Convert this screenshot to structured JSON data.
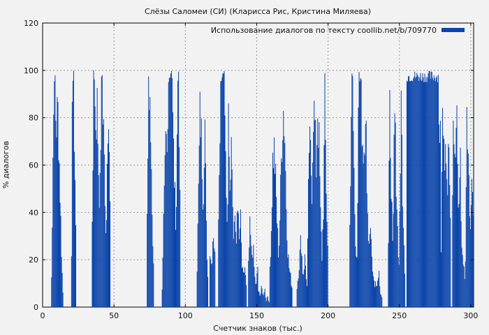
{
  "chart_data": {
    "type": "bar",
    "title": "Слёзы Саломеи (СИ) (Кларисса Рис, Кристина Миляева)",
    "xlabel": "Счетчик знаков (тыс.)",
    "ylabel": "% диалогов",
    "xlim": [
      0,
      302
    ],
    "ylim": [
      0,
      120
    ],
    "xticks": [
      0,
      50,
      100,
      150,
      200,
      250,
      300
    ],
    "yticks": [
      0,
      20,
      40,
      60,
      80,
      100,
      120
    ],
    "grid": true,
    "legend_position": "top-right",
    "series": [
      {
        "name": "Использование диалогов по тексту coollib.net/b/709770",
        "color": "#0a44aa",
        "bin_width": 0.5,
        "segments": [
          {
            "start": 5.5,
            "end": 15,
            "profile": [
              0,
              20,
              78,
              100,
              100,
              96,
              90,
              100,
              85,
              65,
              45,
              25,
              10,
              0
            ]
          },
          {
            "start": 20,
            "end": 23.5,
            "profile": [
              30,
              100,
              100,
              95,
              70,
              40
            ]
          },
          {
            "start": 34.5,
            "end": 47.5,
            "profile": [
              40,
              100,
              100,
              92,
              100,
              70,
              50,
              100,
              100,
              85,
              60,
              30,
              100,
              90,
              50
            ]
          },
          {
            "start": 73,
            "end": 78,
            "profile": [
              40,
              98,
              100,
              90,
              70,
              40,
              20
            ]
          },
          {
            "start": 83.5,
            "end": 96.5,
            "profile": [
              10,
              40,
              60,
              80,
              70,
              100,
              100,
              100,
              100,
              85,
              55,
              30,
              100,
              100,
              70
            ]
          },
          {
            "start": 108,
            "end": 116,
            "profile": [
              20,
              60,
              100,
              80,
              50,
              100,
              40,
              15
            ]
          },
          {
            "start": 117,
            "end": 121,
            "profile": [
              30,
              20,
              40,
              25
            ]
          },
          {
            "start": 123,
            "end": 143,
            "profile": [
              50,
              100,
              100,
              100,
              100,
              70,
              40,
              100,
              60,
              100,
              30,
              50,
              25,
              60,
              30,
              45,
              20,
              15,
              20,
              10
            ]
          },
          {
            "start": 144,
            "end": 151,
            "profile": [
              20,
              40,
              25,
              30,
              15,
              10,
              20
            ]
          },
          {
            "start": 151,
            "end": 159,
            "profile": [
              8,
              5,
              12,
              4,
              10,
              3,
              6,
              2
            ]
          },
          {
            "start": 159,
            "end": 175,
            "profile": [
              20,
              40,
              75,
              78,
              60,
              40,
              25,
              50,
              80,
              100,
              90,
              55,
              30,
              20,
              15,
              10
            ]
          },
          {
            "start": 178,
            "end": 185.5,
            "profile": [
              10,
              20,
              35,
              15,
              25,
              10
            ]
          },
          {
            "start": 185.5,
            "end": 200,
            "profile": [
              30,
              80,
              75,
              60,
              100,
              90,
              70,
              100,
              80,
              45,
              25,
              50,
              100,
              60,
              30
            ]
          },
          {
            "start": 215,
            "end": 233,
            "profile": [
              40,
              100,
              95,
              70,
              30,
              20,
              100,
              100,
              100,
              80,
              60,
              100,
              50,
              30,
              45,
              25,
              15,
              10
            ]
          },
          {
            "start": 233,
            "end": 238,
            "profile": [
              15,
              10,
              20,
              8,
              5
            ]
          },
          {
            "start": 242,
            "end": 250,
            "profile": [
              30,
              100,
              60,
              20,
              100,
              70,
              40,
              20
            ]
          },
          {
            "start": 250,
            "end": 254,
            "profile": [
              50,
              100,
              40,
              20
            ]
          },
          {
            "start": 255,
            "end": 279,
            "profile": [
              100,
              100,
              98,
              100,
              100,
              95,
              100,
              100,
              98,
              100,
              100,
              100,
              100,
              97,
              100,
              100,
              100,
              99,
              100,
              100,
              100,
              95,
              100,
              80
            ]
          },
          {
            "start": 279,
            "end": 286,
            "profile": [
              30,
              100,
              70,
              100,
              40,
              100,
              50
            ]
          },
          {
            "start": 287,
            "end": 296,
            "profile": [
              60,
              100,
              80,
              100,
              40,
              90,
              30,
              20,
              15
            ]
          },
          {
            "start": 296,
            "end": 302,
            "profile": [
              20,
              100,
              85,
              30,
              60,
              40
            ]
          }
        ]
      }
    ]
  }
}
